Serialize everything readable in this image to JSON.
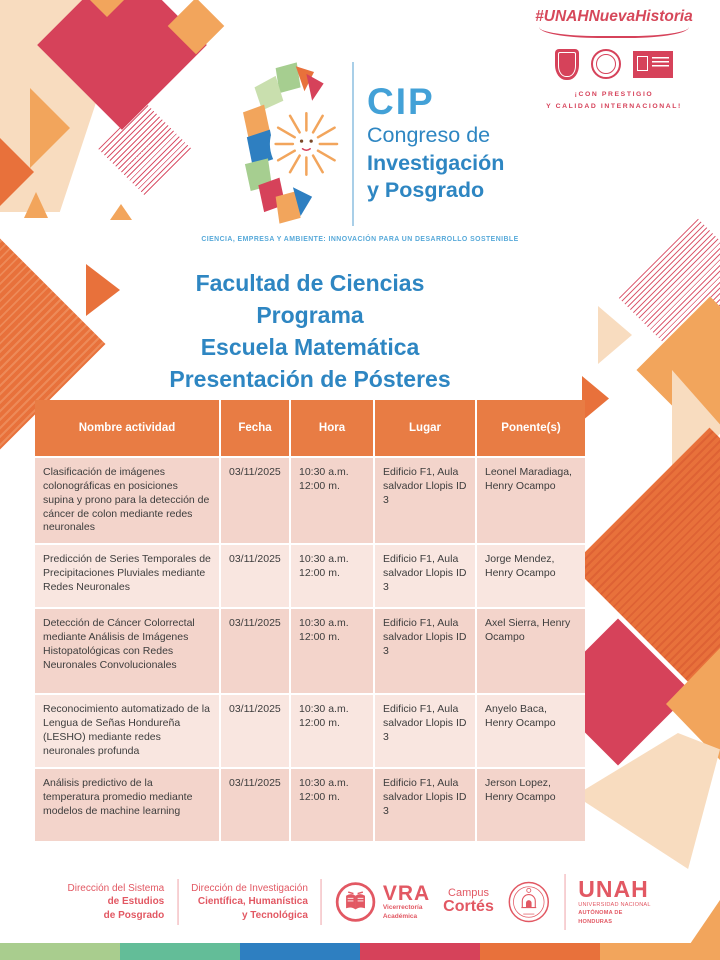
{
  "brand": {
    "hashtag": "#UNAHNuevaHistoria",
    "prestige_line1": "¡CON PRESTIGIO",
    "prestige_line2": "Y CALIDAD INTERNACIONAL!"
  },
  "cip_logo": {
    "acronym": "CIP",
    "name_line1": "Congreso de",
    "name_line2": "Investigación",
    "name_line3": "y Posgrado",
    "tagline": "CIENCIA, EMPRESA Y AMBIENTE: INNOVACIÓN PARA UN DESARROLLO SOSTENIBLE"
  },
  "title": {
    "lines": [
      "Facultad de Ciencias",
      "Programa",
      "Escuela Matemática",
      "Presentación de Pósteres"
    ]
  },
  "table": {
    "headers": [
      "Nombre actividad",
      "Fecha",
      "Hora",
      "Lugar",
      "Ponente(s)"
    ],
    "rows": [
      {
        "actividad": "Clasificación de imágenes colonográficas en posiciones supina y prono para la detección de cáncer de colon mediante redes neuronales",
        "fecha": "03/11/2025",
        "hora": "10:30 a.m. 12:00 m.",
        "lugar": "Edificio F1, Aula salvador Llopis ID 3",
        "ponentes": "Leonel Maradiaga, Henry Ocampo"
      },
      {
        "actividad": "Predicción de Series Temporales de Precipitaciones Pluviales mediante Redes Neuronales",
        "fecha": "03/11/2025",
        "hora": "10:30 a.m. 12:00 m.",
        "lugar": "Edificio F1, Aula salvador Llopis ID 3",
        "ponentes": "Jorge Mendez, Henry Ocampo"
      },
      {
        "actividad": "Detección de Cáncer Colorrectal mediante Análisis de Imágenes Histopatológicas con Redes Neuronales Convolucionales",
        "fecha": "03/11/2025",
        "hora": "10:30 a.m. 12:00 m.",
        "lugar": "Edificio F1, Aula salvador Llopis ID 3",
        "ponentes": "Axel Sierra, Henry Ocampo"
      },
      {
        "actividad": "Reconocimiento automatizado de la Lengua de Señas Hondureña (LESHO) mediante redes neuronales profunda",
        "fecha": "03/11/2025",
        "hora": "10:30 a.m. 12:00 m.",
        "lugar": "Edificio F1, Aula salvador Llopis ID 3",
        "ponentes": "Anyelo Baca, Henry Ocampo"
      },
      {
        "actividad": "Análisis predictivo de la temperatura promedio mediante modelos de machine learning",
        "fecha": "03/11/2025",
        "hora": "10:30 a.m. 12:00 m.",
        "lugar": "Edificio F1, Aula salvador Llopis ID 3",
        "ponentes": "Jerson Lopez, Henry Ocampo"
      }
    ]
  },
  "footer": {
    "block1_line1": "Dirección del Sistema",
    "block1_line2": "de Estudios",
    "block1_line3": "de Posgrado",
    "block2_line1": "Dirección de Investigación",
    "block2_line2": "Científica, Humanística",
    "block2_line3": "y Tecnológica",
    "vra_acronym": "VRA",
    "vra_line1": "Vicerrectoría",
    "vra_line2": "Académica",
    "campus_label": "Campus",
    "campus_name": "Cortés",
    "unah_acronym": "UNAH",
    "unah_line1": "UNIVERSIDAD NACIONAL",
    "unah_line2": "AUTÓNOMA DE HONDURAS"
  },
  "colors": {
    "accent_orange": "#E87C44",
    "crimson": "#D6425A",
    "blue": "#2E86C2",
    "footer_red": "#E25863",
    "row_pink": "#F3D4CB",
    "row_pink_alt": "#F9E6E0",
    "bottom_bar": [
      "#A9CD8E",
      "#63BD98",
      "#2E7FC1",
      "#D6425A",
      "#E8713B",
      "#F2A55C"
    ]
  }
}
